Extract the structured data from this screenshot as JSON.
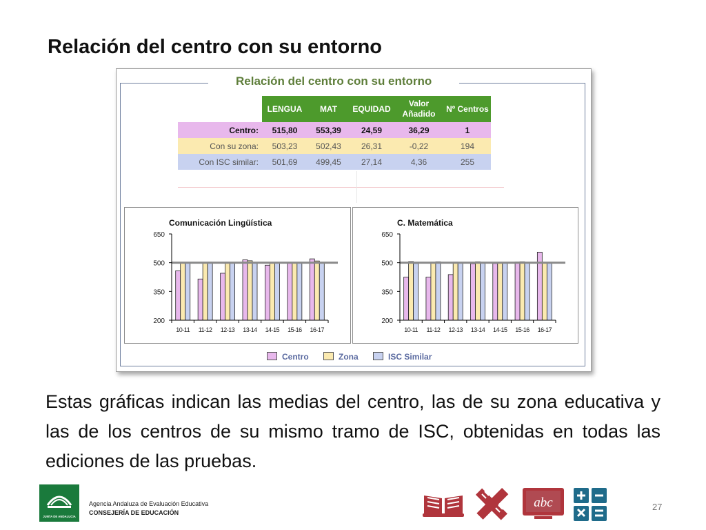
{
  "slide": {
    "title": "Relación del centro con su entorno",
    "body": "Estas gráficas indican las medias del centro, las de su zona educativa y las de los centros de su mismo tramo de ISC, obtenidas en todas las ediciones de las pruebas.",
    "page_number": "27"
  },
  "panel": {
    "title": "Relación del centro con su entorno",
    "table": {
      "headers": [
        "LENGUA",
        "MAT",
        "EQUIDAD",
        "Valor Añadido",
        "Nº Centros"
      ],
      "rows": [
        {
          "label": "Centro:",
          "values": [
            "515,80",
            "553,39",
            "24,59",
            "36,29",
            "1"
          ]
        },
        {
          "label": "Con su zona:",
          "values": [
            "503,23",
            "502,43",
            "26,31",
            "-0,22",
            "194"
          ]
        },
        {
          "label": "Con ISC similar:",
          "values": [
            "501,69",
            "499,45",
            "27,14",
            "4,36",
            "255"
          ]
        }
      ]
    },
    "legend": [
      {
        "label": "Centro",
        "color": "#e8b8ec"
      },
      {
        "label": "Zona",
        "color": "#fbeab0"
      },
      {
        "label": "ISC Similar",
        "color": "#c8d2f0"
      }
    ]
  },
  "chart_data": [
    {
      "type": "bar",
      "title": "Comunicación Lingüística",
      "categories": [
        "10-11",
        "11-12",
        "12-13",
        "13-14",
        "14-15",
        "15-16",
        "16-17"
      ],
      "series": [
        {
          "name": "Centro",
          "values": [
            458,
            415,
            445,
            515,
            487,
            498,
            520
          ]
        },
        {
          "name": "Zona",
          "values": [
            500,
            502,
            503,
            510,
            500,
            498,
            509
          ]
        },
        {
          "name": "ISC Similar",
          "values": [
            500,
            503,
            501,
            502,
            499,
            500,
            500
          ]
        }
      ],
      "reference_line": 500,
      "ylim": [
        200,
        650
      ],
      "yticks": [
        "200",
        "350",
        "500",
        "650"
      ],
      "colors": [
        "#e8b8ec",
        "#fbeab0",
        "#c8d2f0"
      ]
    },
    {
      "type": "bar",
      "title": "C. Matemática",
      "categories": [
        "10-11",
        "11-12",
        "12-13",
        "13-14",
        "14-15",
        "15-16",
        "16-17"
      ],
      "series": [
        {
          "name": "Centro",
          "values": [
            425,
            425,
            438,
            495,
            496,
            504,
            555
          ]
        },
        {
          "name": "Zona",
          "values": [
            506,
            503,
            503,
            505,
            498,
            505,
            502
          ]
        },
        {
          "name": "ISC Similar",
          "values": [
            496,
            505,
            502,
            500,
            498,
            501,
            498
          ]
        }
      ],
      "reference_line": 500,
      "ylim": [
        200,
        650
      ],
      "yticks": [
        "200",
        "350",
        "500",
        "650"
      ],
      "colors": [
        "#e8b8ec",
        "#fbeab0",
        "#c8d2f0"
      ]
    }
  ],
  "footer": {
    "agency": "Agencia Andaluza de Evaluación Educativa",
    "department": "CONSEJERÍA DE EDUCACIÓN",
    "logo_text": "JUNTA DE ANDALUCIA",
    "icons": [
      "open-book-icon",
      "ruler-pencil-icon",
      "abc-slate-icon",
      "calculator-icon"
    ],
    "icon_color": "#b0353c",
    "calculator_color": "#1f6b8a"
  }
}
